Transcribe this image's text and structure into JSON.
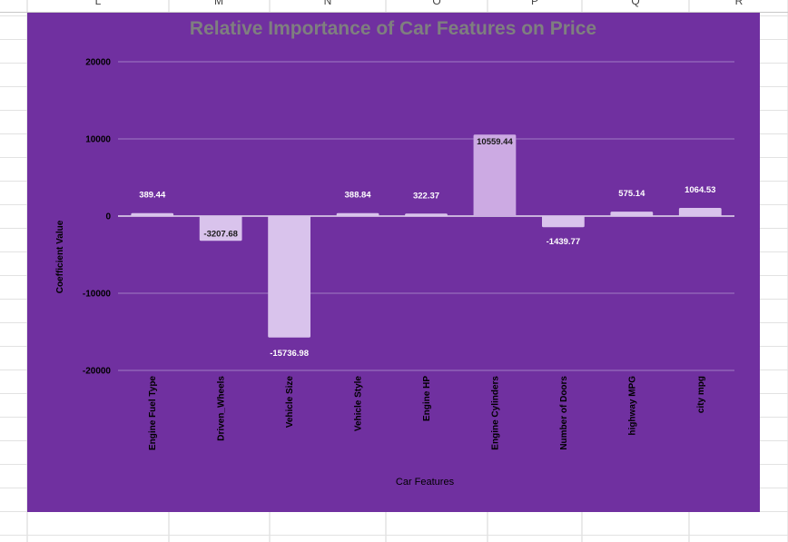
{
  "sheet": {
    "column_headers": [
      "L",
      "M",
      "N",
      "O",
      "P",
      "Q",
      "R"
    ]
  },
  "colors": {
    "chart_background": "#7030a0",
    "bar_fill": "#d9c3ec",
    "bar_fill_highlight": "#ccaae3",
    "title_color": "#7f7f7f",
    "gridline": "#a07cc5"
  },
  "chart_data": {
    "type": "bar",
    "title": "Relative Importance of Car Features on Price",
    "xlabel": "Car Features",
    "ylabel": "Coefficient Value",
    "ylim": [
      -20000,
      20000
    ],
    "yticks": [
      20000,
      10000,
      0,
      -10000,
      -20000
    ],
    "grid": true,
    "legend": "none",
    "categories": [
      "Engine Fuel Type",
      "Driven_Wheels",
      "Vehicle Size",
      "Vehicle Style",
      "Engine HP",
      "Engine Cylinders",
      "Number of Doors",
      "highway MPG",
      "city mpg"
    ],
    "values": [
      389.44,
      -3207.68,
      -15736.98,
      388.84,
      322.37,
      10559.44,
      -1439.77,
      575.14,
      1064.53
    ],
    "data_labels": [
      "389.44",
      "-3207.68",
      "-15736.98",
      "388.84",
      "322.37",
      "10559.44",
      "-1439.77",
      "575.14",
      "1064.53"
    ]
  }
}
